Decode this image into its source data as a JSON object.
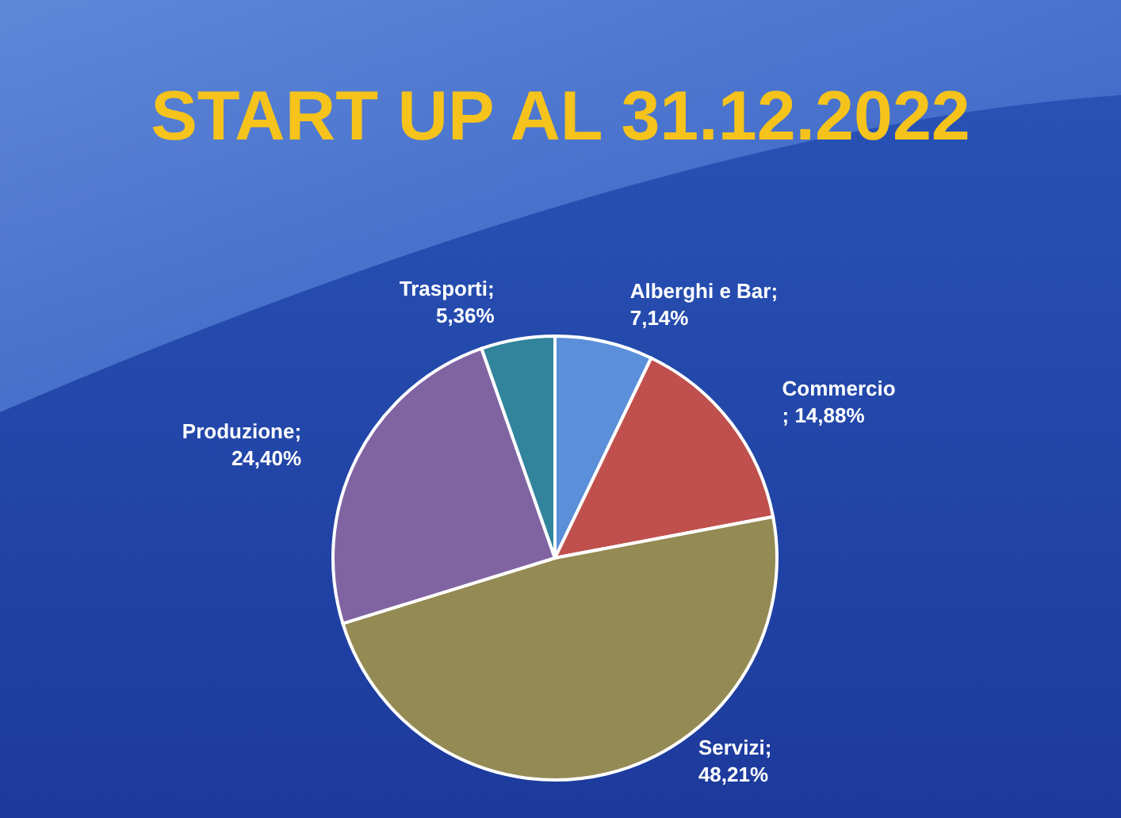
{
  "chart_data": {
    "type": "pie",
    "title": "START UP AL 31.12.2022",
    "categories": [
      "Alberghi e Bar",
      "Commercio",
      "Servizi",
      "Produzione",
      "Trasporti"
    ],
    "values": [
      7.14,
      14.88,
      48.21,
      24.4,
      5.36
    ],
    "value_labels": [
      ";\n7,14%",
      "\n; 14,88%",
      ";\n48,21%",
      ";\n24,40%",
      ";\n5,36%"
    ],
    "colors": [
      "#5b8fd9",
      "#c0504d",
      "#948a54",
      "#8064a2",
      "#31849b"
    ]
  }
}
